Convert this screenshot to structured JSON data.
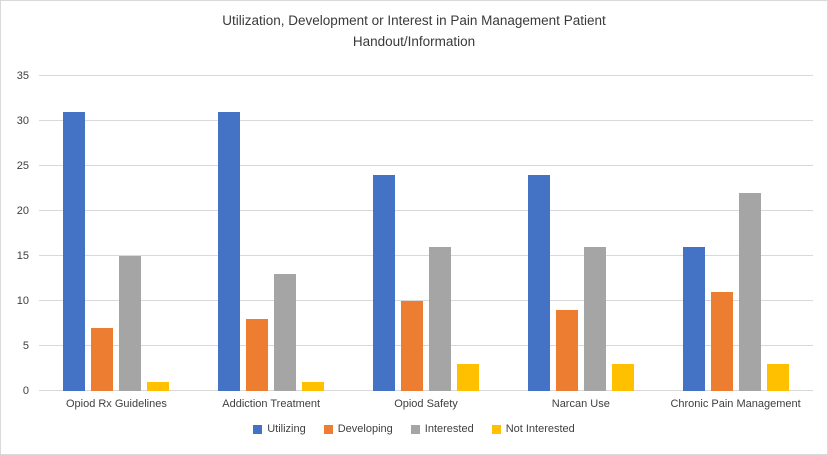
{
  "chart": {
    "title_line1": "Utilization, Development or Interest in Pain Management Patient",
    "title_line2": "Handout/Information"
  },
  "chart_data": {
    "type": "bar",
    "title": "Utilization, Development or Interest in Pain Management Patient Handout/Information",
    "categories": [
      "Opiod Rx Guidelines",
      "Addiction Treatment",
      "Opiod Safety",
      "Narcan Use",
      "Chronic Pain Management"
    ],
    "series": [
      {
        "name": "Utilizing",
        "color": "#4472C4",
        "values": [
          31,
          31,
          24,
          24,
          16
        ]
      },
      {
        "name": "Developing",
        "color": "#ED7D31",
        "values": [
          7,
          8,
          10,
          9,
          11
        ]
      },
      {
        "name": "Interested",
        "color": "#A5A5A5",
        "values": [
          15,
          13,
          16,
          16,
          22
        ]
      },
      {
        "name": "Not Interested",
        "color": "#FFC000",
        "values": [
          1,
          1,
          3,
          3,
          3
        ]
      }
    ],
    "xlabel": "",
    "ylabel": "",
    "ylim": [
      0,
      35
    ],
    "yticks": [
      0,
      5,
      10,
      15,
      20,
      25,
      30,
      35
    ],
    "grid": true,
    "legend_position": "bottom",
    "colors": {
      "gridline": "#D9D9D9",
      "axis_text": "#404040",
      "title_text": "#3A3A3A",
      "border": "#D9D9D9",
      "background": "#FFFFFF"
    }
  }
}
